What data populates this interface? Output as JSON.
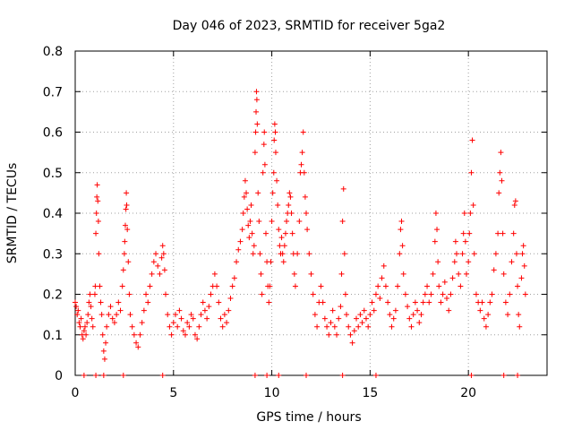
{
  "chart_data": {
    "type": "scatter",
    "title": "Day 046 of 2023, SRMTID for receiver 5ga2",
    "xlabel": "GPS time / hours",
    "ylabel": "SRMTID / TECUs",
    "xlim": [
      0,
      24
    ],
    "ylim": [
      0,
      0.8
    ],
    "x_ticks": [
      0,
      5,
      10,
      15,
      20
    ],
    "x_tick_labels": [
      "0",
      "5",
      "10",
      "15",
      "20"
    ],
    "y_ticks": [
      0,
      0.1,
      0.2,
      0.3,
      0.4,
      0.5,
      0.6,
      0.7,
      0.8
    ],
    "y_tick_labels": [
      "0",
      "0.1",
      "0.2",
      "0.3",
      "0.4",
      "0.5",
      "0.6",
      "0.7",
      "0.8"
    ],
    "grid": true,
    "marker": "+",
    "color": "#ff0000",
    "series": [
      {
        "name": "SRMTID",
        "points": [
          [
            0.0,
            0.18
          ],
          [
            0.05,
            0.17
          ],
          [
            0.1,
            0.15
          ],
          [
            0.15,
            0.16
          ],
          [
            0.2,
            0.13
          ],
          [
            0.25,
            0.12
          ],
          [
            0.3,
            0.14
          ],
          [
            0.35,
            0.1
          ],
          [
            0.4,
            0.09
          ],
          [
            0.45,
            0.11
          ],
          [
            0.5,
            0.12
          ],
          [
            0.55,
            0.1
          ],
          [
            0.6,
            0.13
          ],
          [
            0.65,
            0.15
          ],
          [
            0.7,
            0.18
          ],
          [
            0.75,
            0.2
          ],
          [
            0.8,
            0.17
          ],
          [
            0.85,
            0.14
          ],
          [
            0.9,
            0.12
          ],
          [
            1.0,
            0.2
          ],
          [
            1.02,
            0.22
          ],
          [
            1.05,
            0.35
          ],
          [
            1.08,
            0.4
          ],
          [
            1.1,
            0.44
          ],
          [
            1.12,
            0.47
          ],
          [
            1.15,
            0.43
          ],
          [
            1.18,
            0.38
          ],
          [
            1.2,
            0.3
          ],
          [
            1.25,
            0.22
          ],
          [
            1.3,
            0.18
          ],
          [
            1.35,
            0.15
          ],
          [
            1.4,
            0.1
          ],
          [
            1.45,
            0.06
          ],
          [
            1.5,
            0.04
          ],
          [
            1.55,
            0.08
          ],
          [
            1.6,
            0.12
          ],
          [
            1.7,
            0.15
          ],
          [
            1.8,
            0.17
          ],
          [
            1.9,
            0.14
          ],
          [
            2.0,
            0.13
          ],
          [
            2.1,
            0.15
          ],
          [
            2.2,
            0.18
          ],
          [
            2.3,
            0.16
          ],
          [
            2.4,
            0.22
          ],
          [
            2.45,
            0.26
          ],
          [
            2.5,
            0.3
          ],
          [
            2.52,
            0.33
          ],
          [
            2.55,
            0.37
          ],
          [
            2.58,
            0.41
          ],
          [
            2.6,
            0.45
          ],
          [
            2.62,
            0.42
          ],
          [
            2.65,
            0.36
          ],
          [
            2.7,
            0.28
          ],
          [
            2.75,
            0.2
          ],
          [
            2.8,
            0.15
          ],
          [
            2.9,
            0.12
          ],
          [
            3.0,
            0.1
          ],
          [
            3.1,
            0.08
          ],
          [
            3.2,
            0.07
          ],
          [
            3.3,
            0.1
          ],
          [
            3.4,
            0.13
          ],
          [
            3.5,
            0.16
          ],
          [
            3.6,
            0.2
          ],
          [
            3.7,
            0.18
          ],
          [
            3.8,
            0.22
          ],
          [
            3.9,
            0.25
          ],
          [
            4.0,
            0.28
          ],
          [
            4.1,
            0.3
          ],
          [
            4.2,
            0.27
          ],
          [
            4.3,
            0.25
          ],
          [
            4.4,
            0.29
          ],
          [
            4.45,
            0.32
          ],
          [
            4.5,
            0.3
          ],
          [
            4.55,
            0.26
          ],
          [
            4.6,
            0.2
          ],
          [
            4.7,
            0.15
          ],
          [
            4.8,
            0.12
          ],
          [
            4.9,
            0.1
          ],
          [
            5.0,
            0.13
          ],
          [
            5.1,
            0.15
          ],
          [
            5.2,
            0.12
          ],
          [
            5.3,
            0.16
          ],
          [
            5.4,
            0.14
          ],
          [
            5.5,
            0.11
          ],
          [
            5.6,
            0.1
          ],
          [
            5.7,
            0.13
          ],
          [
            5.8,
            0.12
          ],
          [
            5.9,
            0.15
          ],
          [
            6.0,
            0.14
          ],
          [
            6.1,
            0.1
          ],
          [
            6.2,
            0.09
          ],
          [
            6.3,
            0.12
          ],
          [
            6.4,
            0.15
          ],
          [
            6.5,
            0.18
          ],
          [
            6.6,
            0.16
          ],
          [
            6.7,
            0.14
          ],
          [
            6.8,
            0.17
          ],
          [
            6.9,
            0.2
          ],
          [
            7.0,
            0.22
          ],
          [
            7.1,
            0.25
          ],
          [
            7.2,
            0.22
          ],
          [
            7.3,
            0.18
          ],
          [
            7.4,
            0.14
          ],
          [
            7.5,
            0.12
          ],
          [
            7.6,
            0.15
          ],
          [
            7.7,
            0.13
          ],
          [
            7.8,
            0.16
          ],
          [
            7.9,
            0.19
          ],
          [
            8.0,
            0.22
          ],
          [
            8.1,
            0.24
          ],
          [
            8.2,
            0.28
          ],
          [
            8.3,
            0.31
          ],
          [
            8.4,
            0.33
          ],
          [
            8.5,
            0.36
          ],
          [
            8.55,
            0.4
          ],
          [
            8.6,
            0.44
          ],
          [
            8.65,
            0.48
          ],
          [
            8.7,
            0.45
          ],
          [
            8.75,
            0.41
          ],
          [
            8.8,
            0.37
          ],
          [
            8.85,
            0.34
          ],
          [
            8.9,
            0.38
          ],
          [
            8.95,
            0.42
          ],
          [
            9.0,
            0.35
          ],
          [
            9.05,
            0.3
          ],
          [
            9.1,
            0.32
          ],
          [
            9.15,
            0.55
          ],
          [
            9.18,
            0.6
          ],
          [
            9.2,
            0.65
          ],
          [
            9.22,
            0.7
          ],
          [
            9.24,
            0.68
          ],
          [
            9.26,
            0.62
          ],
          [
            9.3,
            0.45
          ],
          [
            9.35,
            0.38
          ],
          [
            9.4,
            0.3
          ],
          [
            9.45,
            0.25
          ],
          [
            9.5,
            0.2
          ],
          [
            9.55,
            0.5
          ],
          [
            9.6,
            0.57
          ],
          [
            9.62,
            0.6
          ],
          [
            9.65,
            0.52
          ],
          [
            9.7,
            0.35
          ],
          [
            9.75,
            0.28
          ],
          [
            9.8,
            0.22
          ],
          [
            9.85,
            0.18
          ],
          [
            9.9,
            0.22
          ],
          [
            9.95,
            0.28
          ],
          [
            10.0,
            0.38
          ],
          [
            10.05,
            0.45
          ],
          [
            10.1,
            0.5
          ],
          [
            10.12,
            0.58
          ],
          [
            10.15,
            0.62
          ],
          [
            10.18,
            0.6
          ],
          [
            10.2,
            0.55
          ],
          [
            10.25,
            0.48
          ],
          [
            10.3,
            0.42
          ],
          [
            10.35,
            0.36
          ],
          [
            10.4,
            0.32
          ],
          [
            10.45,
            0.3
          ],
          [
            10.5,
            0.34
          ],
          [
            10.55,
            0.3
          ],
          [
            10.6,
            0.28
          ],
          [
            10.65,
            0.32
          ],
          [
            10.7,
            0.35
          ],
          [
            10.75,
            0.38
          ],
          [
            10.8,
            0.4
          ],
          [
            10.85,
            0.42
          ],
          [
            10.9,
            0.45
          ],
          [
            10.95,
            0.44
          ],
          [
            11.0,
            0.4
          ],
          [
            11.05,
            0.35
          ],
          [
            11.1,
            0.3
          ],
          [
            11.15,
            0.25
          ],
          [
            11.2,
            0.22
          ],
          [
            11.3,
            0.3
          ],
          [
            11.4,
            0.38
          ],
          [
            11.45,
            0.5
          ],
          [
            11.5,
            0.52
          ],
          [
            11.55,
            0.55
          ],
          [
            11.6,
            0.6
          ],
          [
            11.65,
            0.5
          ],
          [
            11.7,
            0.44
          ],
          [
            11.75,
            0.4
          ],
          [
            11.8,
            0.36
          ],
          [
            11.9,
            0.3
          ],
          [
            12.0,
            0.25
          ],
          [
            12.1,
            0.2
          ],
          [
            12.2,
            0.15
          ],
          [
            12.3,
            0.12
          ],
          [
            12.4,
            0.18
          ],
          [
            12.5,
            0.22
          ],
          [
            12.6,
            0.18
          ],
          [
            12.7,
            0.14
          ],
          [
            12.8,
            0.12
          ],
          [
            12.9,
            0.1
          ],
          [
            13.0,
            0.13
          ],
          [
            13.1,
            0.16
          ],
          [
            13.2,
            0.12
          ],
          [
            13.3,
            0.1
          ],
          [
            13.4,
            0.14
          ],
          [
            13.5,
            0.17
          ],
          [
            13.55,
            0.25
          ],
          [
            13.6,
            0.38
          ],
          [
            13.65,
            0.46
          ],
          [
            13.7,
            0.3
          ],
          [
            13.75,
            0.2
          ],
          [
            13.8,
            0.15
          ],
          [
            13.9,
            0.12
          ],
          [
            14.0,
            0.1
          ],
          [
            14.1,
            0.08
          ],
          [
            14.2,
            0.11
          ],
          [
            14.3,
            0.14
          ],
          [
            14.4,
            0.12
          ],
          [
            14.5,
            0.15
          ],
          [
            14.6,
            0.13
          ],
          [
            14.7,
            0.16
          ],
          [
            14.8,
            0.14
          ],
          [
            14.9,
            0.12
          ],
          [
            15.0,
            0.15
          ],
          [
            15.1,
            0.18
          ],
          [
            15.2,
            0.16
          ],
          [
            15.3,
            0.2
          ],
          [
            15.4,
            0.22
          ],
          [
            15.5,
            0.19
          ],
          [
            15.6,
            0.24
          ],
          [
            15.7,
            0.27
          ],
          [
            15.8,
            0.22
          ],
          [
            15.9,
            0.18
          ],
          [
            16.0,
            0.15
          ],
          [
            16.1,
            0.12
          ],
          [
            16.2,
            0.14
          ],
          [
            16.3,
            0.16
          ],
          [
            16.4,
            0.22
          ],
          [
            16.5,
            0.3
          ],
          [
            16.55,
            0.36
          ],
          [
            16.6,
            0.38
          ],
          [
            16.65,
            0.32
          ],
          [
            16.7,
            0.25
          ],
          [
            16.8,
            0.2
          ],
          [
            16.9,
            0.17
          ],
          [
            17.0,
            0.14
          ],
          [
            17.1,
            0.12
          ],
          [
            17.2,
            0.15
          ],
          [
            17.3,
            0.18
          ],
          [
            17.4,
            0.16
          ],
          [
            17.5,
            0.13
          ],
          [
            17.6,
            0.15
          ],
          [
            17.7,
            0.18
          ],
          [
            17.8,
            0.2
          ],
          [
            17.9,
            0.22
          ],
          [
            18.0,
            0.18
          ],
          [
            18.1,
            0.2
          ],
          [
            18.2,
            0.25
          ],
          [
            18.3,
            0.33
          ],
          [
            18.35,
            0.4
          ],
          [
            18.4,
            0.36
          ],
          [
            18.45,
            0.28
          ],
          [
            18.5,
            0.22
          ],
          [
            18.6,
            0.18
          ],
          [
            18.7,
            0.2
          ],
          [
            18.8,
            0.23
          ],
          [
            18.9,
            0.19
          ],
          [
            19.0,
            0.16
          ],
          [
            19.1,
            0.2
          ],
          [
            19.2,
            0.24
          ],
          [
            19.3,
            0.28
          ],
          [
            19.35,
            0.33
          ],
          [
            19.4,
            0.3
          ],
          [
            19.5,
            0.25
          ],
          [
            19.6,
            0.22
          ],
          [
            19.7,
            0.3
          ],
          [
            19.75,
            0.35
          ],
          [
            19.8,
            0.4
          ],
          [
            19.85,
            0.33
          ],
          [
            19.9,
            0.25
          ],
          [
            20.0,
            0.28
          ],
          [
            20.05,
            0.35
          ],
          [
            20.1,
            0.4
          ],
          [
            20.15,
            0.5
          ],
          [
            20.2,
            0.58
          ],
          [
            20.25,
            0.42
          ],
          [
            20.3,
            0.3
          ],
          [
            20.4,
            0.2
          ],
          [
            20.5,
            0.18
          ],
          [
            20.6,
            0.16
          ],
          [
            20.7,
            0.18
          ],
          [
            20.8,
            0.14
          ],
          [
            20.9,
            0.12
          ],
          [
            21.0,
            0.15
          ],
          [
            21.1,
            0.18
          ],
          [
            21.2,
            0.2
          ],
          [
            21.3,
            0.26
          ],
          [
            21.4,
            0.3
          ],
          [
            21.5,
            0.35
          ],
          [
            21.55,
            0.45
          ],
          [
            21.6,
            0.5
          ],
          [
            21.65,
            0.55
          ],
          [
            21.7,
            0.48
          ],
          [
            21.75,
            0.35
          ],
          [
            21.8,
            0.25
          ],
          [
            21.9,
            0.18
          ],
          [
            22.0,
            0.15
          ],
          [
            22.1,
            0.2
          ],
          [
            22.2,
            0.28
          ],
          [
            22.3,
            0.35
          ],
          [
            22.35,
            0.42
          ],
          [
            22.4,
            0.43
          ],
          [
            22.45,
            0.3
          ],
          [
            22.5,
            0.22
          ],
          [
            22.55,
            0.15
          ],
          [
            22.6,
            0.12
          ],
          [
            22.7,
            0.24
          ],
          [
            22.75,
            0.3
          ],
          [
            22.8,
            0.32
          ],
          [
            22.85,
            0.27
          ],
          [
            22.9,
            0.2
          ]
        ]
      }
    ],
    "zero_points_x": [
      0.45,
      1.05,
      1.45,
      2.45,
      4.45,
      9.15,
      9.75,
      10.35,
      11.75,
      13.6,
      15.3,
      20.15,
      21.8,
      22.5
    ]
  }
}
